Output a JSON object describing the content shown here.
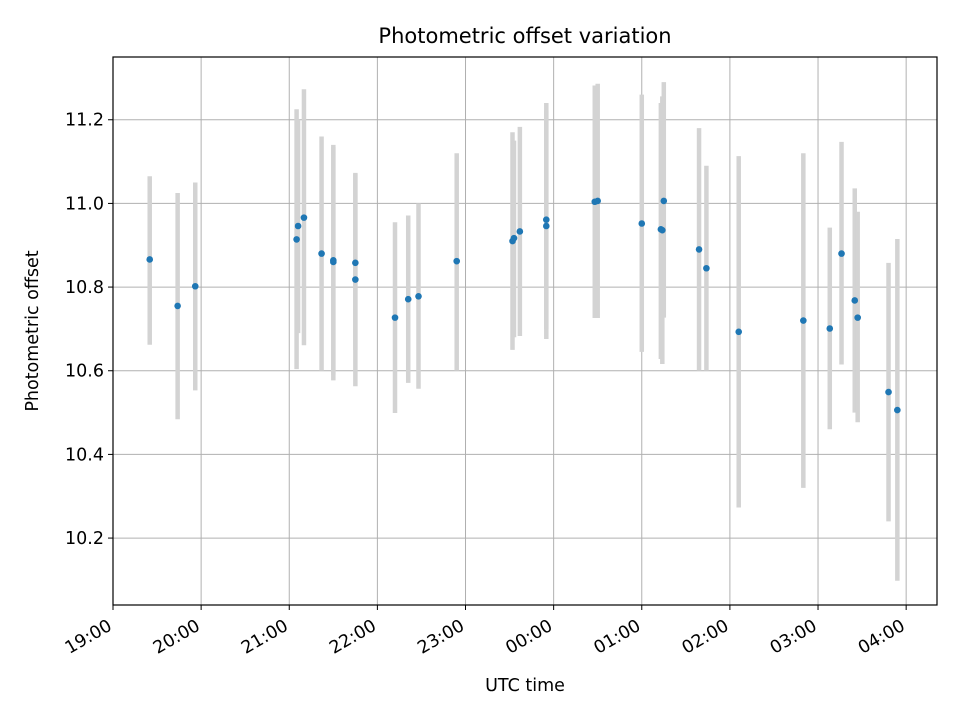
{
  "chart_data": {
    "type": "scatter",
    "title": "Photometric offset variation",
    "xlabel": "UTC time",
    "ylabel": "Photometric offset",
    "x_ticks": [
      "19:00",
      "20:00",
      "21:00",
      "22:00",
      "23:00",
      "00:00",
      "01:00",
      "02:00",
      "03:00",
      "04:00"
    ],
    "y_ticks": [
      10.2,
      10.4,
      10.6,
      10.8,
      11.0,
      11.2
    ],
    "xlim": [
      "19:00",
      "04:21"
    ],
    "ylim": [
      10.04,
      11.35
    ],
    "grid": true,
    "point_color": "#1f77b4",
    "errorbar_color": "#d3d3d3",
    "points": [
      {
        "t": "19:25",
        "y": 10.866,
        "low": 10.662,
        "high": 11.065
      },
      {
        "t": "19:44",
        "y": 10.755,
        "low": 10.484,
        "high": 11.025
      },
      {
        "t": "19:56",
        "y": 10.802,
        "low": 10.553,
        "high": 11.05
      },
      {
        "t": "21:05",
        "y": 10.914,
        "low": 10.604,
        "high": 11.225
      },
      {
        "t": "21:06",
        "y": 10.946,
        "low": 10.69,
        "high": 11.2
      },
      {
        "t": "21:10",
        "y": 10.966,
        "low": 10.661,
        "high": 11.273
      },
      {
        "t": "21:22",
        "y": 10.88,
        "low": 10.6,
        "high": 11.16
      },
      {
        "t": "21:30",
        "y": 10.86,
        "low": 10.577,
        "high": 11.14
      },
      {
        "t": "21:30",
        "y": 10.864,
        "low": 10.59,
        "high": 11.135
      },
      {
        "t": "21:45",
        "y": 10.818,
        "low": 10.563,
        "high": 11.073
      },
      {
        "t": "21:45",
        "y": 10.858,
        "low": 10.65,
        "high": 11.07
      },
      {
        "t": "22:12",
        "y": 10.727,
        "low": 10.499,
        "high": 10.955
      },
      {
        "t": "22:21",
        "y": 10.771,
        "low": 10.571,
        "high": 10.971
      },
      {
        "t": "22:28",
        "y": 10.778,
        "low": 10.557,
        "high": 11.0
      },
      {
        "t": "22:54",
        "y": 10.862,
        "low": 10.6,
        "high": 11.12
      },
      {
        "t": "23:32",
        "y": 10.91,
        "low": 10.65,
        "high": 11.17
      },
      {
        "t": "23:33",
        "y": 10.917,
        "low": 10.68,
        "high": 11.15
      },
      {
        "t": "23:37",
        "y": 10.933,
        "low": 10.683,
        "high": 11.183
      },
      {
        "t": "23:55",
        "y": 10.946,
        "low": 10.676,
        "high": 11.24
      },
      {
        "t": "23:55",
        "y": 10.961,
        "low": 10.7,
        "high": 11.222
      },
      {
        "t": "00:28",
        "y": 11.004,
        "low": 10.726,
        "high": 11.282
      },
      {
        "t": "00:30",
        "y": 11.006,
        "low": 10.726,
        "high": 11.286
      },
      {
        "t": "01:00",
        "y": 10.952,
        "low": 10.645,
        "high": 11.26
      },
      {
        "t": "01:13",
        "y": 10.938,
        "low": 10.628,
        "high": 11.24
      },
      {
        "t": "01:14",
        "y": 10.936,
        "low": 10.616,
        "high": 11.256
      },
      {
        "t": "01:15",
        "y": 11.006,
        "low": 10.727,
        "high": 11.29
      },
      {
        "t": "01:39",
        "y": 10.89,
        "low": 10.6,
        "high": 11.18
      },
      {
        "t": "01:44",
        "y": 10.845,
        "low": 10.6,
        "high": 11.09
      },
      {
        "t": "02:06",
        "y": 10.693,
        "low": 10.273,
        "high": 11.113
      },
      {
        "t": "02:50",
        "y": 10.72,
        "low": 10.32,
        "high": 11.12
      },
      {
        "t": "03:08",
        "y": 10.701,
        "low": 10.46,
        "high": 10.942
      },
      {
        "t": "03:16",
        "y": 10.88,
        "low": 10.615,
        "high": 11.147
      },
      {
        "t": "03:25",
        "y": 10.768,
        "low": 10.5,
        "high": 11.036
      },
      {
        "t": "03:27",
        "y": 10.727,
        "low": 10.477,
        "high": 10.98
      },
      {
        "t": "03:48",
        "y": 10.549,
        "low": 10.24,
        "high": 10.858
      },
      {
        "t": "03:54",
        "y": 10.506,
        "low": 10.098,
        "high": 10.915
      }
    ]
  }
}
